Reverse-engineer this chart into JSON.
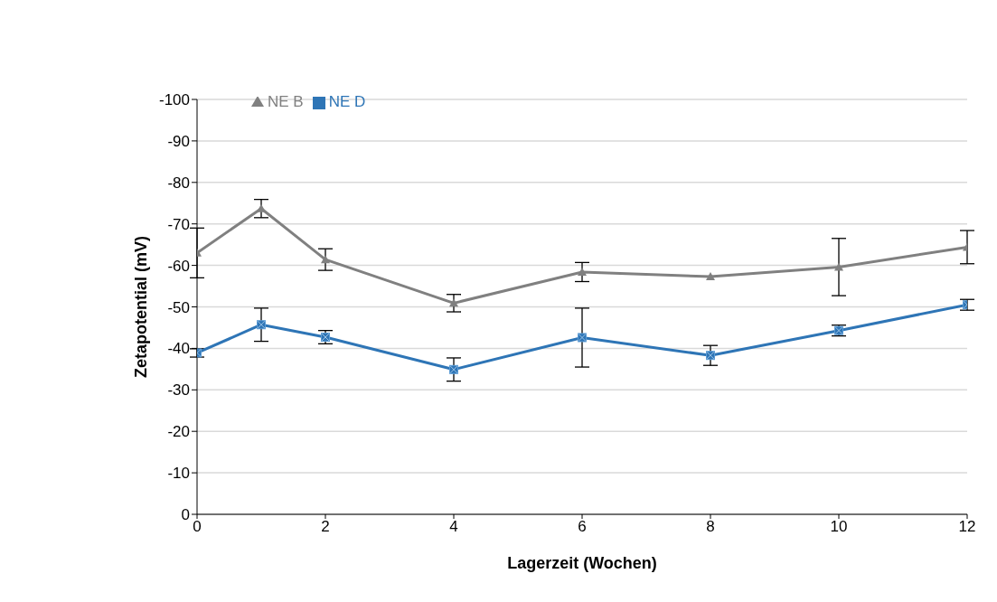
{
  "chart_data": {
    "type": "line",
    "xlabel": "Lagerzeit (Wochen)",
    "ylabel": "Zetapotential (mV)",
    "x": [
      0,
      1,
      2,
      4,
      6,
      8,
      10,
      12
    ],
    "series": [
      {
        "name": "NE B",
        "color": "#808080",
        "marker": "triangle",
        "values": [
          -63.0,
          -73.7,
          -61.4,
          -50.9,
          -58.4,
          -57.3,
          -59.6,
          -64.4
        ],
        "errors": [
          6.0,
          2.2,
          2.6,
          2.1,
          2.3,
          null,
          6.9,
          4.0
        ]
      },
      {
        "name": "NE D",
        "color": "#2e75b6",
        "marker": "square",
        "values": [
          -38.9,
          -45.7,
          -42.7,
          -34.9,
          -42.6,
          -38.3,
          -44.3,
          -50.5
        ],
        "errors": [
          1.0,
          4.0,
          1.6,
          2.8,
          7.1,
          2.4,
          1.3,
          1.3
        ]
      }
    ],
    "xlim": [
      0,
      12
    ],
    "xticks": [
      0,
      2,
      4,
      6,
      8,
      10,
      12
    ],
    "ylim": [
      0,
      -100
    ],
    "yticks": [
      0,
      -10,
      -20,
      -30,
      -40,
      -50,
      -60,
      -70,
      -80,
      -90,
      -100
    ],
    "grid": "y",
    "legend": "top left",
    "line_style": "solid"
  }
}
